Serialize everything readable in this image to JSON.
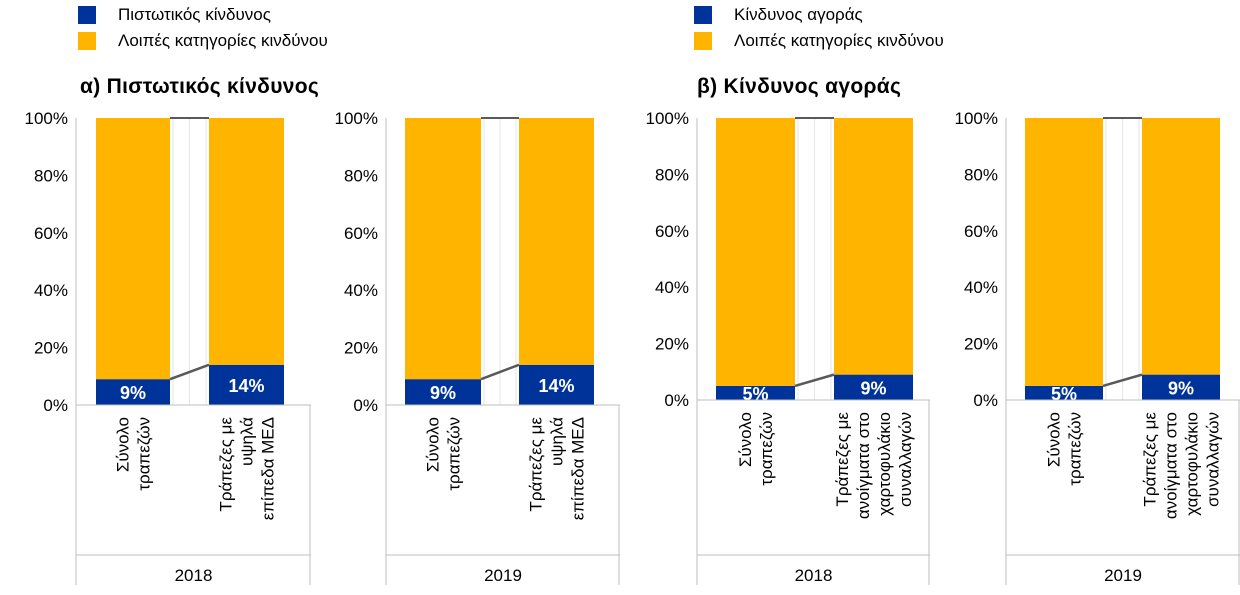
{
  "colors": {
    "primary": "#003399",
    "other": "#FFB400",
    "connector": "#595959",
    "axis": "#BFBFBF"
  },
  "legends": [
    {
      "items": [
        {
          "label": "Πιστωτικός κίνδυνος",
          "color": "#003399"
        },
        {
          "label": "Λοιπές κατηγορίες κινδύνου",
          "color": "#FFB400"
        }
      ]
    },
    {
      "items": [
        {
          "label": "Κίνδυνος αγοράς",
          "color": "#003399"
        },
        {
          "label": "Λοιπές κατηγορίες κινδύνου",
          "color": "#FFB400"
        }
      ]
    }
  ],
  "panel_titles": [
    "α) Πιστωτικός κίνδυνος",
    "β) Κίνδυνος αγοράς"
  ],
  "chart_data": [
    {
      "type": "bar",
      "stacked": true,
      "title": "",
      "group": "2018",
      "categories": [
        [
          "Σύνολο",
          "τραπεζών"
        ],
        [
          "Τράπεζες με",
          "υψηλά",
          "επίπεδα ΜΕΔ"
        ]
      ],
      "series": [
        {
          "name": "Πιστωτικός κίνδυνος",
          "values": [
            9,
            14
          ]
        },
        {
          "name": "Λοιπές κατηγορίες κινδύνου",
          "values": [
            91,
            86
          ]
        }
      ],
      "data_labels": [
        "9%",
        "14%"
      ],
      "yticks": [
        "0%",
        "20%",
        "40%",
        "60%",
        "80%",
        "100%"
      ],
      "ylim": [
        0,
        100
      ]
    },
    {
      "type": "bar",
      "stacked": true,
      "title": "",
      "group": "2019",
      "categories": [
        [
          "Σύνολο",
          "τραπεζών"
        ],
        [
          "Τράπεζες με",
          "υψηλά",
          "επίπεδα ΜΕΔ"
        ]
      ],
      "series": [
        {
          "name": "Πιστωτικός κίνδυνος",
          "values": [
            9,
            14
          ]
        },
        {
          "name": "Λοιπές κατηγορίες κινδύνου",
          "values": [
            91,
            86
          ]
        }
      ],
      "data_labels": [
        "9%",
        "14%"
      ],
      "yticks": [
        "0%",
        "20%",
        "40%",
        "60%",
        "80%",
        "100%"
      ],
      "ylim": [
        0,
        100
      ]
    },
    {
      "type": "bar",
      "stacked": true,
      "title": "",
      "group": "2018",
      "categories": [
        [
          "Σύνολο",
          "τραπεζών"
        ],
        [
          "Τράπεζες με",
          "ανοίγματα στο",
          "χαρτοφυλάκιο",
          "συναλλαγών"
        ]
      ],
      "series": [
        {
          "name": "Κίνδυνος αγοράς",
          "values": [
            5,
            9
          ]
        },
        {
          "name": "Λοιπές κατηγορίες κινδύνου",
          "values": [
            95,
            91
          ]
        }
      ],
      "data_labels": [
        "5%",
        "9%"
      ],
      "yticks": [
        "0%",
        "20%",
        "40%",
        "60%",
        "80%",
        "100%"
      ],
      "ylim": [
        0,
        100
      ]
    },
    {
      "type": "bar",
      "stacked": true,
      "title": "",
      "group": "2019",
      "categories": [
        [
          "Σύνολο",
          "τραπεζών"
        ],
        [
          "Τράπεζες με",
          "ανοίγματα στο",
          "χαρτοφυλάκιο",
          "συναλλαγών"
        ]
      ],
      "series": [
        {
          "name": "Κίνδυνος αγοράς",
          "values": [
            5,
            9
          ]
        },
        {
          "name": "Λοιπές κατηγορίες κινδύνου",
          "values": [
            95,
            91
          ]
        }
      ],
      "data_labels": [
        "5%",
        "9%"
      ],
      "yticks": [
        "0%",
        "20%",
        "40%",
        "60%",
        "80%",
        "100%"
      ],
      "ylim": [
        0,
        100
      ]
    }
  ]
}
